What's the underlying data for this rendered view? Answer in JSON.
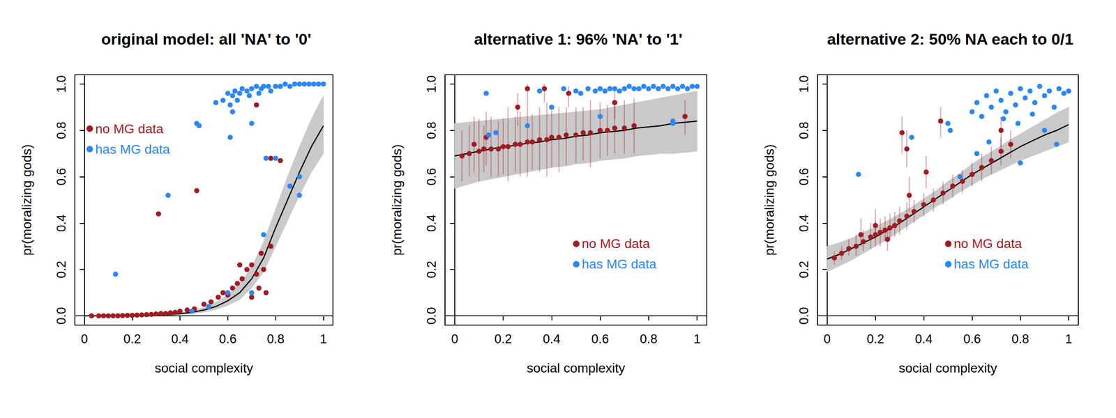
{
  "chart_data": [
    {
      "type": "scatter",
      "title": "original model: all 'NA' to '0'",
      "x_label": "social complexity",
      "y_label": "pr(moralizing gods)",
      "xlim": [
        -0.04,
        1.04
      ],
      "xticks": [
        0,
        0.2,
        0.4,
        0.6,
        0.8,
        1
      ],
      "ylim": [
        -0.04,
        1.04
      ],
      "yticks": [
        {
          "value": 0,
          "label": "0.0"
        },
        0.2,
        0.4,
        0.6,
        0.8,
        {
          "value": 1,
          "label": "1.0"
        }
      ],
      "grid": false,
      "legend": "upper left",
      "fit": {
        "color": "#000000",
        "x": [
          0,
          0.05,
          0.1,
          0.15,
          0.2,
          0.25,
          0.3,
          0.35,
          0.4,
          0.45,
          0.5,
          0.55,
          0.6,
          0.65,
          0.7,
          0.75,
          0.8,
          0.85,
          0.9,
          0.95,
          1
        ],
        "values": [
          0,
          0,
          0.001,
          0.001,
          0.002,
          0.003,
          0.004,
          0.006,
          0.009,
          0.015,
          0.025,
          0.04,
          0.065,
          0.1,
          0.16,
          0.25,
          0.38,
          0.5,
          0.62,
          0.73,
          0.82
        ],
        "lower": [
          0,
          0,
          0,
          0,
          0.001,
          0.001,
          0.002,
          0.003,
          0.005,
          0.009,
          0.016,
          0.027,
          0.045,
          0.07,
          0.12,
          0.19,
          0.3,
          0.41,
          0.52,
          0.62,
          0.7
        ],
        "upper": [
          0.001,
          0.001,
          0.002,
          0.003,
          0.004,
          0.005,
          0.007,
          0.01,
          0.014,
          0.022,
          0.036,
          0.058,
          0.09,
          0.14,
          0.21,
          0.32,
          0.46,
          0.6,
          0.73,
          0.85,
          0.95
        ]
      },
      "series": [
        {
          "name": "no MG data",
          "color": "#a31a22",
          "marker": "circle",
          "x": [
            0.03,
            0.06,
            0.08,
            0.1,
            0.12,
            0.14,
            0.16,
            0.18,
            0.2,
            0.22,
            0.24,
            0.26,
            0.28,
            0.3,
            0.32,
            0.34,
            0.36,
            0.38,
            0.4,
            0.43,
            0.46,
            0.5,
            0.53,
            0.56,
            0.58,
            0.6,
            0.62,
            0.64,
            0.66,
            0.68,
            0.7,
            0.72,
            0.73,
            0.74,
            0.76,
            0.78,
            0.31,
            0.47,
            0.72,
            0.78,
            0.82,
            0.75,
            0.7,
            0.65
          ],
          "values": [
            0,
            0,
            0,
            0,
            0,
            0,
            0.001,
            0.002,
            0.002,
            0.003,
            0.004,
            0.005,
            0.006,
            0.008,
            0.01,
            0.01,
            0.013,
            0.015,
            0.02,
            0.025,
            0.03,
            0.05,
            0.06,
            0.08,
            0.1,
            0.09,
            0.12,
            0.14,
            0.16,
            0.2,
            0.22,
            0.18,
            0.12,
            0.27,
            0.1,
            0.3,
            0.44,
            0.54,
            0.91,
            0.68,
            0.67,
            0.2,
            0.08,
            0.22
          ]
        },
        {
          "name": "has MG data",
          "color": "#2b87f5",
          "marker": "circle",
          "x": [
            0.55,
            0.58,
            0.6,
            0.61,
            0.62,
            0.62,
            0.63,
            0.64,
            0.65,
            0.66,
            0.68,
            0.69,
            0.7,
            0.72,
            0.73,
            0.74,
            0.75,
            0.77,
            0.78,
            0.8,
            0.82,
            0.84,
            0.86,
            0.88,
            0.9,
            0.92,
            0.94,
            0.96,
            0.98,
            1.0,
            0.13,
            0.35,
            0.47,
            0.48,
            0.61,
            0.76,
            0.8,
            0.9,
            0.9,
            0.75,
            0.7,
            0.6,
            0.45,
            0.52,
            0.86,
            0.7
          ],
          "values": [
            0.92,
            0.93,
            0.96,
            0.91,
            0.95,
            0.88,
            0.97,
            0.93,
            0.96,
            0.98,
            0.97,
            0.95,
            0.98,
            0.99,
            0.96,
            0.98,
            0.99,
            0.99,
            0.97,
            0.99,
            0.99,
            1.0,
            0.99,
            1.0,
            1.0,
            1.0,
            1.0,
            1.0,
            1.0,
            1.0,
            0.18,
            0.52,
            0.83,
            0.82,
            0.77,
            0.68,
            0.68,
            0.6,
            0.52,
            0.35,
            0.1,
            0.1,
            0.02,
            0.04,
            0.56,
            0.83
          ]
        }
      ]
    },
    {
      "type": "scatter",
      "title": "alternative 1: 96% 'NA' to '1'",
      "x_label": "social complexity",
      "y_label": "pr(moralizing gods)",
      "xlim": [
        -0.04,
        1.04
      ],
      "xticks": [
        0,
        0.2,
        0.4,
        0.6,
        0.8,
        1
      ],
      "ylim": [
        -0.04,
        1.04
      ],
      "yticks": [
        {
          "value": 0,
          "label": "0.0"
        },
        0.2,
        0.4,
        0.6,
        0.8,
        {
          "value": 1,
          "label": "1.0"
        }
      ],
      "grid": false,
      "legend": "lower right",
      "fit": {
        "color": "#000000",
        "x": [
          0,
          0.05,
          0.1,
          0.15,
          0.2,
          0.25,
          0.3,
          0.35,
          0.4,
          0.45,
          0.5,
          0.55,
          0.6,
          0.65,
          0.7,
          0.75,
          0.8,
          0.85,
          0.9,
          0.95,
          1
        ],
        "values": [
          0.69,
          0.7,
          0.71,
          0.72,
          0.73,
          0.735,
          0.745,
          0.75,
          0.76,
          0.765,
          0.775,
          0.78,
          0.79,
          0.795,
          0.8,
          0.81,
          0.815,
          0.82,
          0.83,
          0.835,
          0.84
        ],
        "lower": [
          0.55,
          0.565,
          0.58,
          0.59,
          0.6,
          0.61,
          0.62,
          0.63,
          0.64,
          0.645,
          0.655,
          0.66,
          0.67,
          0.675,
          0.68,
          0.69,
          0.695,
          0.7,
          0.7,
          0.705,
          0.71
        ],
        "upper": [
          0.83,
          0.835,
          0.84,
          0.845,
          0.85,
          0.855,
          0.86,
          0.865,
          0.87,
          0.875,
          0.88,
          0.885,
          0.89,
          0.9,
          0.91,
          0.92,
          0.93,
          0.94,
          0.95,
          0.96,
          0.97
        ]
      },
      "series": [
        {
          "name": "no MG data",
          "color": "#a31a22",
          "marker": "circle",
          "x": [
            0.03,
            0.06,
            0.1,
            0.12,
            0.15,
            0.18,
            0.2,
            0.22,
            0.25,
            0.27,
            0.3,
            0.32,
            0.35,
            0.38,
            0.4,
            0.43,
            0.46,
            0.5,
            0.53,
            0.56,
            0.6,
            0.63,
            0.66,
            0.7,
            0.74,
            0.08,
            0.13,
            0.3,
            0.37,
            0.47,
            0.26,
            0.95,
            0.66
          ],
          "values": [
            0.69,
            0.7,
            0.71,
            0.72,
            0.72,
            0.72,
            0.73,
            0.73,
            0.74,
            0.74,
            0.75,
            0.75,
            0.76,
            0.76,
            0.77,
            0.77,
            0.78,
            0.78,
            0.79,
            0.79,
            0.8,
            0.8,
            0.81,
            0.81,
            0.82,
            0.74,
            0.77,
            0.98,
            0.98,
            0.96,
            0.9,
            0.86,
            0.92
          ],
          "lower": [
            0.58,
            0.6,
            0.58,
            0.62,
            0.6,
            0.6,
            0.61,
            0.58,
            0.62,
            0.6,
            0.6,
            0.63,
            0.62,
            0.6,
            0.64,
            0.62,
            0.65,
            0.66,
            0.67,
            0.64,
            0.68,
            0.69,
            0.7,
            0.7,
            0.7,
            0.62,
            0.65,
            0.9,
            0.92,
            0.9,
            0.82,
            0.78,
            0.85
          ],
          "upper": [
            0.8,
            0.82,
            0.85,
            0.82,
            0.86,
            0.84,
            0.85,
            0.9,
            0.86,
            0.88,
            0.9,
            0.87,
            0.9,
            0.92,
            0.9,
            0.9,
            0.9,
            0.9,
            0.9,
            0.93,
            0.92,
            0.91,
            0.92,
            0.93,
            0.94,
            0.86,
            0.88,
            1.0,
            1.0,
            0.99,
            0.96,
            0.93,
            0.97
          ]
        },
        {
          "name": "has MG data",
          "color": "#2b87f5",
          "marker": "circle",
          "x": [
            0.5,
            0.52,
            0.55,
            0.58,
            0.6,
            0.62,
            0.64,
            0.66,
            0.68,
            0.7,
            0.72,
            0.74,
            0.76,
            0.78,
            0.8,
            0.82,
            0.84,
            0.86,
            0.88,
            0.9,
            0.92,
            0.94,
            0.96,
            0.98,
            1.0,
            0.13,
            0.17,
            0.14,
            0.35,
            0.3,
            0.6,
            0.9,
            0.9,
            0.45,
            0.4
          ],
          "values": [
            0.97,
            0.96,
            0.98,
            0.97,
            0.98,
            0.97,
            0.98,
            0.98,
            0.97,
            0.98,
            0.99,
            0.98,
            0.98,
            0.99,
            0.98,
            0.99,
            0.98,
            0.99,
            0.98,
            0.99,
            0.98,
            0.99,
            0.98,
            0.99,
            0.99,
            0.96,
            0.79,
            0.78,
            0.97,
            0.82,
            0.86,
            0.84,
            0.83,
            0.98,
            0.9
          ]
        }
      ]
    },
    {
      "type": "scatter",
      "title": "alternative 2: 50% NA each to 0/1",
      "x_label": "social complexity",
      "y_label": "pr(moralizing gods)",
      "xlim": [
        -0.04,
        1.04
      ],
      "xticks": [
        0,
        0.2,
        0.4,
        0.6,
        0.8,
        1
      ],
      "ylim": [
        -0.04,
        1.04
      ],
      "yticks": [
        {
          "value": 0,
          "label": "0.0"
        },
        0.2,
        0.4,
        0.6,
        0.8,
        {
          "value": 1,
          "label": "1.0"
        }
      ],
      "grid": false,
      "legend": "lower right",
      "fit": {
        "color": "#000000",
        "x": [
          0,
          0.05,
          0.1,
          0.15,
          0.2,
          0.25,
          0.3,
          0.35,
          0.4,
          0.45,
          0.5,
          0.55,
          0.6,
          0.65,
          0.7,
          0.75,
          0.8,
          0.85,
          0.9,
          0.95,
          1
        ],
        "values": [
          0.245,
          0.265,
          0.29,
          0.315,
          0.34,
          0.37,
          0.4,
          0.435,
          0.47,
          0.505,
          0.54,
          0.575,
          0.61,
          0.64,
          0.67,
          0.7,
          0.73,
          0.755,
          0.78,
          0.8,
          0.825
        ],
        "lower": [
          0.19,
          0.215,
          0.24,
          0.27,
          0.3,
          0.33,
          0.365,
          0.4,
          0.435,
          0.47,
          0.5,
          0.535,
          0.565,
          0.595,
          0.62,
          0.645,
          0.67,
          0.69,
          0.71,
          0.73,
          0.75
        ],
        "upper": [
          0.3,
          0.315,
          0.335,
          0.36,
          0.385,
          0.41,
          0.44,
          0.47,
          0.505,
          0.54,
          0.58,
          0.615,
          0.655,
          0.69,
          0.72,
          0.755,
          0.785,
          0.815,
          0.845,
          0.875,
          0.9
        ]
      },
      "series": [
        {
          "name": "no MG data",
          "color": "#a31a22",
          "marker": "circle",
          "x": [
            0.03,
            0.06,
            0.09,
            0.12,
            0.15,
            0.18,
            0.2,
            0.22,
            0.24,
            0.26,
            0.28,
            0.3,
            0.33,
            0.36,
            0.4,
            0.44,
            0.48,
            0.52,
            0.56,
            0.6,
            0.64,
            0.68,
            0.72,
            0.76,
            0.14,
            0.2,
            0.25,
            0.31,
            0.33,
            0.47,
            0.72,
            0.41,
            0.34
          ],
          "values": [
            0.25,
            0.27,
            0.29,
            0.3,
            0.32,
            0.34,
            0.35,
            0.36,
            0.37,
            0.38,
            0.39,
            0.41,
            0.43,
            0.45,
            0.48,
            0.5,
            0.53,
            0.56,
            0.58,
            0.61,
            0.64,
            0.67,
            0.71,
            0.74,
            0.35,
            0.39,
            0.33,
            0.79,
            0.72,
            0.84,
            0.8,
            0.62,
            0.52
          ],
          "lower": [
            0.22,
            0.24,
            0.26,
            0.26,
            0.28,
            0.29,
            0.3,
            0.3,
            0.32,
            0.33,
            0.34,
            0.35,
            0.37,
            0.4,
            0.43,
            0.45,
            0.48,
            0.51,
            0.53,
            0.56,
            0.58,
            0.61,
            0.65,
            0.68,
            0.3,
            0.33,
            0.28,
            0.7,
            0.64,
            0.77,
            0.73,
            0.55,
            0.45
          ],
          "upper": [
            0.28,
            0.3,
            0.33,
            0.35,
            0.37,
            0.4,
            0.41,
            0.42,
            0.43,
            0.44,
            0.45,
            0.47,
            0.49,
            0.5,
            0.53,
            0.55,
            0.58,
            0.61,
            0.63,
            0.66,
            0.7,
            0.73,
            0.77,
            0.8,
            0.42,
            0.46,
            0.38,
            0.86,
            0.8,
            0.9,
            0.86,
            0.69,
            0.6
          ]
        },
        {
          "name": "has MG data",
          "color": "#2b87f5",
          "marker": "circle",
          "x": [
            0.6,
            0.62,
            0.64,
            0.66,
            0.68,
            0.7,
            0.72,
            0.74,
            0.76,
            0.78,
            0.8,
            0.82,
            0.84,
            0.86,
            0.88,
            0.9,
            0.92,
            0.94,
            0.96,
            0.98,
            1.0,
            0.73,
            0.79,
            0.85,
            0.13,
            0.35,
            0.5,
            0.51,
            0.9,
            0.95,
            0.62,
            0.55,
            0.67,
            0.8
          ],
          "values": [
            0.88,
            0.92,
            0.86,
            0.95,
            0.9,
            0.97,
            0.93,
            0.88,
            0.96,
            0.91,
            0.98,
            0.94,
            0.97,
            0.92,
            0.99,
            0.95,
            0.97,
            0.9,
            0.98,
            0.96,
            0.97,
            0.85,
            0.83,
            0.87,
            0.61,
            0.77,
            0.83,
            0.8,
            0.8,
            0.74,
            0.7,
            0.6,
            0.75,
            0.66
          ]
        }
      ]
    }
  ]
}
